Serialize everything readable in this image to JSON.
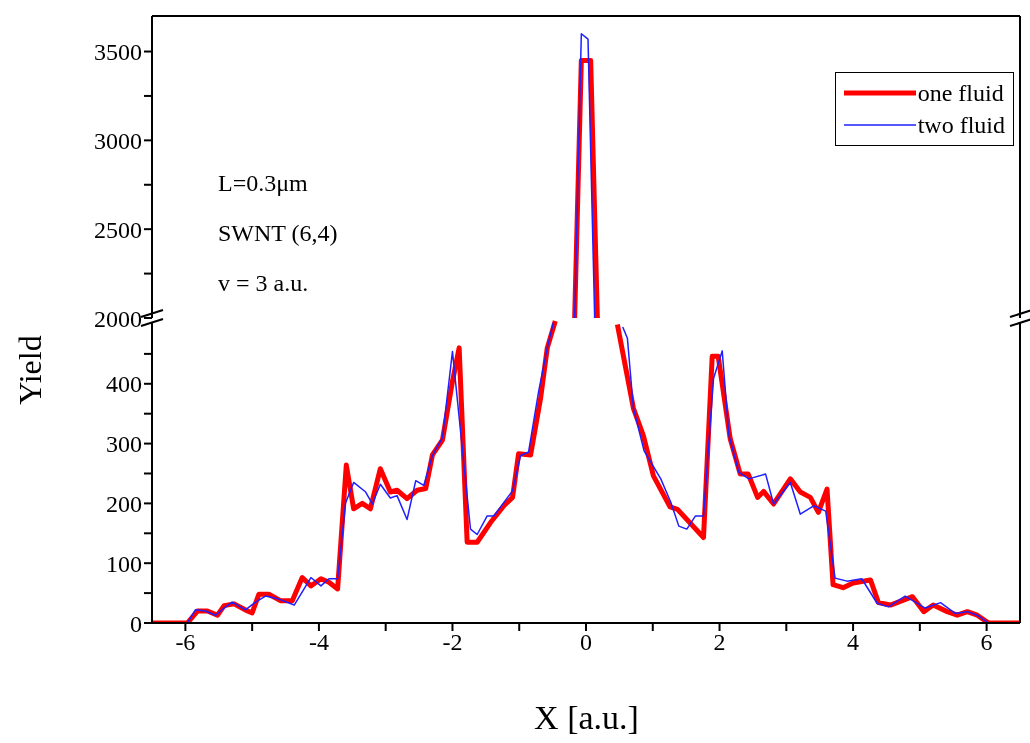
{
  "chart_data": [
    {
      "type": "line",
      "xlim": [
        -6.5,
        6.5
      ],
      "xticks": [
        -6,
        -4,
        -2,
        0,
        2,
        4,
        6
      ],
      "ylim": [
        2000,
        3700
      ],
      "yticks": [
        2000,
        {
          "value": 2250,
          "label": null
        },
        2500,
        {
          "value": 2750,
          "label": null
        },
        3000,
        {
          "value": 3250,
          "label": null
        },
        3500
      ],
      "tick_labels": "y",
      "legend": "top right",
      "annotations": [
        "L=0.3μm",
        "SWNT (6,4)",
        "v = 3 a.u."
      ],
      "series": [
        {
          "name": "one fluid",
          "color": "#ff0000",
          "x": [
            -0.17,
            -0.07,
            0.07,
            0.17
          ],
          "values": [
            2000,
            3450,
            3450,
            2000
          ]
        },
        {
          "name": "two fluid",
          "color": "#1f1fff",
          "x": [
            -0.17,
            -0.07,
            0.03,
            0.13
          ],
          "values": [
            2000,
            3600,
            3570,
            2000
          ]
        }
      ]
    },
    {
      "type": "line",
      "xlim": [
        -6.5,
        6.5
      ],
      "xticks": [
        -6,
        {
          "value": -5,
          "label": null
        },
        -4,
        {
          "value": -3,
          "label": null
        },
        -2,
        {
          "value": -1,
          "label": null
        },
        0,
        {
          "value": 1,
          "label": null
        },
        2,
        {
          "value": 3,
          "label": null
        },
        4,
        {
          "value": 5,
          "label": null
        },
        6
      ],
      "ylim": [
        0,
        510
      ],
      "yticks": [
        0,
        {
          "value": 50,
          "label": null
        },
        100,
        {
          "value": 150,
          "label": null
        },
        200,
        {
          "value": 250,
          "label": null
        },
        300,
        {
          "value": 350,
          "label": null
        },
        400,
        {
          "value": 450,
          "label": null
        }
      ],
      "xlabel": "X [a.u.]",
      "ylabel": "Yield",
      "series": [
        {
          "color": "#ff0000",
          "x": [
            -6.5,
            -5.97,
            -5.82,
            -5.67,
            -5.52,
            -5.42,
            -5.27,
            -5.07,
            -5.0,
            -4.9,
            -4.75,
            -4.57,
            -4.4,
            -4.25,
            -4.12,
            -3.97,
            -3.85,
            -3.72,
            -3.59,
            -3.48,
            -3.35,
            -3.23,
            -3.08,
            -2.93,
            -2.83,
            -2.68,
            -2.53,
            -2.4,
            -2.3,
            -2.15,
            -2.0,
            -1.9,
            -1.78,
            -1.63,
            -1.43,
            -1.23,
            -1.1,
            -1.01,
            -0.83,
            -0.68,
            -0.58,
            -0.46,
            0,
            0.47,
            0.71,
            0.86,
            1.01,
            1.26,
            1.37,
            1.76,
            1.89,
            1.98,
            2.16,
            2.31,
            2.43,
            2.57,
            2.66,
            2.81,
            3.06,
            3.21,
            3.36,
            3.48,
            3.61,
            3.7,
            3.85,
            4.0,
            4.26,
            4.38,
            4.56,
            4.89,
            5.06,
            5.2,
            5.41,
            5.56,
            5.71,
            5.86,
            6.03,
            6.5
          ],
          "values": [
            0,
            0,
            20,
            20,
            13,
            29,
            32,
            20,
            17,
            48,
            48,
            37,
            37,
            76,
            62,
            74,
            68,
            57,
            264,
            191,
            200,
            191,
            258,
            219,
            222,
            208,
            222,
            225,
            281,
            306,
            404,
            460,
            135,
            135,
            168,
            196,
            210,
            283,
            281,
            376,
            460,
            505,
            null,
            499,
            359,
            313,
            246,
            194,
            190,
            143,
            446,
            446,
            308,
            249,
            249,
            210,
            220,
            199,
            241,
            219,
            210,
            185,
            224,
            64,
            59,
            67,
            72,
            34,
            30,
            44,
            19,
            30,
            19,
            13,
            19,
            13,
            0,
            0
          ]
        },
        {
          "color": "#1f1fff",
          "x": [
            -6.5,
            -5.97,
            -5.85,
            -5.7,
            -5.55,
            -5.42,
            -5.3,
            -5.1,
            -4.95,
            -4.8,
            -4.6,
            -4.37,
            -4.12,
            -3.97,
            -3.85,
            -3.72,
            -3.6,
            -3.48,
            -3.3,
            -3.2,
            -3.08,
            -2.93,
            -2.83,
            -2.68,
            -2.55,
            -2.43,
            -2.3,
            -2.15,
            -2.0,
            -1.73,
            -1.63,
            -1.48,
            -1.38,
            -1.1,
            -0.98,
            -0.86,
            -0.71,
            -0.58,
            -0.49,
            0,
            0.55,
            0.62,
            0.71,
            0.87,
            1.12,
            1.27,
            1.39,
            1.51,
            1.64,
            1.76,
            1.91,
            2.04,
            2.14,
            2.29,
            2.44,
            2.69,
            2.81,
            3.06,
            3.21,
            3.41,
            3.59,
            3.73,
            3.91,
            4.13,
            4.36,
            4.53,
            4.78,
            5.08,
            5.31,
            5.53,
            5.71,
            5.86,
            6.03,
            6.5
          ],
          "values": [
            0,
            0,
            22,
            20,
            13,
            25,
            35,
            22,
            35,
            45,
            40,
            30,
            76,
            62,
            74,
            74,
            201,
            235,
            219,
            199,
            232,
            209,
            213,
            173,
            238,
            230,
            280,
            310,
            454,
            157,
            148,
            179,
            179,
            221,
            280,
            286,
            387,
            460,
            502,
            null,
            495,
            476,
            359,
            288,
            241,
            202,
            162,
            157,
            179,
            179,
            409,
            455,
            314,
            252,
            241,
            249,
            199,
            235,
            182,
            196,
            187,
            75,
            70,
            74,
            33,
            27,
            45,
            25,
            34,
            16,
            19,
            13,
            0,
            0
          ]
        }
      ]
    }
  ]
}
